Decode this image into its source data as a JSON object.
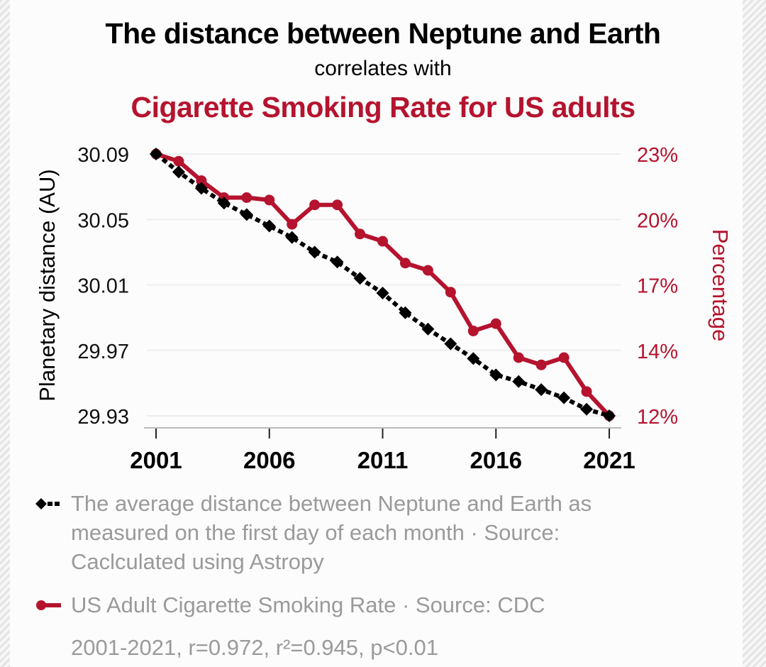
{
  "header": {
    "title": "The distance between Neptune and Earth",
    "subtitle": "correlates with",
    "title2": "Cigarette Smoking Rate for US adults"
  },
  "colors": {
    "series1": "#000000",
    "series2": "#b5132e",
    "legend_text": "#9a9a9a",
    "grid": "#eeeeee"
  },
  "chart_data": {
    "type": "line",
    "title": "The distance between Neptune and Earth correlates with Cigarette Smoking Rate for US adults",
    "x": [
      2001,
      2002,
      2003,
      2004,
      2005,
      2006,
      2007,
      2008,
      2009,
      2010,
      2011,
      2012,
      2013,
      2014,
      2015,
      2016,
      2017,
      2018,
      2019,
      2020,
      2021
    ],
    "xlabel": "",
    "x_ticks": [
      "2001",
      "2006",
      "2011",
      "2016",
      "2021"
    ],
    "xlim": [
      2001,
      2021
    ],
    "y_left": {
      "label": "Planetary distance (AU)",
      "ticks": [
        "30.09",
        "30.05",
        "30.01",
        "29.97",
        "29.93"
      ],
      "range": [
        29.93,
        30.09
      ]
    },
    "y_right": {
      "label": "Percentage",
      "ticks": [
        "23%",
        "20%",
        "17%",
        "14%",
        "12%"
      ],
      "range": [
        11.8,
        22.6
      ]
    },
    "grid": true,
    "legend_position": "bottom",
    "series": [
      {
        "name": "The average distance between Neptune and Earth as measured on the first day of each month · Source: Caclculated using Astropy",
        "axis": "left",
        "marker": "diamond",
        "line_style": "dotted",
        "values": [
          30.09,
          30.079,
          30.069,
          30.06,
          30.053,
          30.046,
          30.039,
          30.03,
          30.024,
          30.014,
          30.005,
          29.993,
          29.983,
          29.974,
          29.965,
          29.955,
          29.951,
          29.946,
          29.941,
          29.934,
          29.93
        ]
      },
      {
        "name": "US Adult Cigarette Smoking Rate · Source: CDC",
        "axis": "right",
        "marker": "circle",
        "line_style": "solid",
        "values": [
          22.6,
          22.3,
          21.5,
          20.8,
          20.8,
          20.7,
          19.7,
          20.5,
          20.5,
          19.3,
          19.0,
          18.1,
          17.8,
          16.9,
          15.3,
          15.6,
          14.2,
          13.9,
          14.2,
          12.8,
          11.8
        ]
      }
    ],
    "annotation": "2001-2021, r=0.972, r²=0.945, p<0.01"
  }
}
